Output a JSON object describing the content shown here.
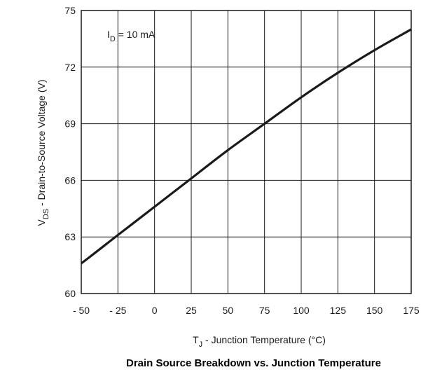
{
  "chart_data": {
    "type": "line",
    "title": "Drain Source Breakdown vs. Junction Temperature",
    "xlabel": {
      "main": "T",
      "sub": "J",
      "rest": " - Junction Temperature (°C)"
    },
    "ylabel": {
      "main": "V",
      "sub": "DS",
      "rest": " - Drain-to-Source Voltage (V)"
    },
    "annotation": {
      "main": "I",
      "sub": "D",
      "rest": " = 10 mA"
    },
    "xlim": [
      -50,
      175
    ],
    "ylim": [
      60,
      75
    ],
    "x_ticks": [
      -50,
      -25,
      0,
      25,
      50,
      75,
      100,
      125,
      150,
      175
    ],
    "x_tick_labels": [
      "- 50",
      "- 25",
      "0",
      "25",
      "50",
      "75",
      "100",
      "125",
      "150",
      "175"
    ],
    "y_ticks": [
      60,
      63,
      66,
      69,
      72,
      75
    ],
    "y_tick_labels": [
      "60",
      "63",
      "66",
      "69",
      "72",
      "75"
    ],
    "grid": true,
    "series": [
      {
        "color": "#1a1a1a",
        "x": [
          -55,
          -50,
          -25,
          0,
          25,
          50,
          75,
          100,
          125,
          150,
          175
        ],
        "y": [
          61.4,
          61.6,
          63.1,
          64.6,
          66.1,
          67.6,
          69.0,
          70.4,
          71.7,
          72.9,
          74.0
        ]
      }
    ]
  }
}
